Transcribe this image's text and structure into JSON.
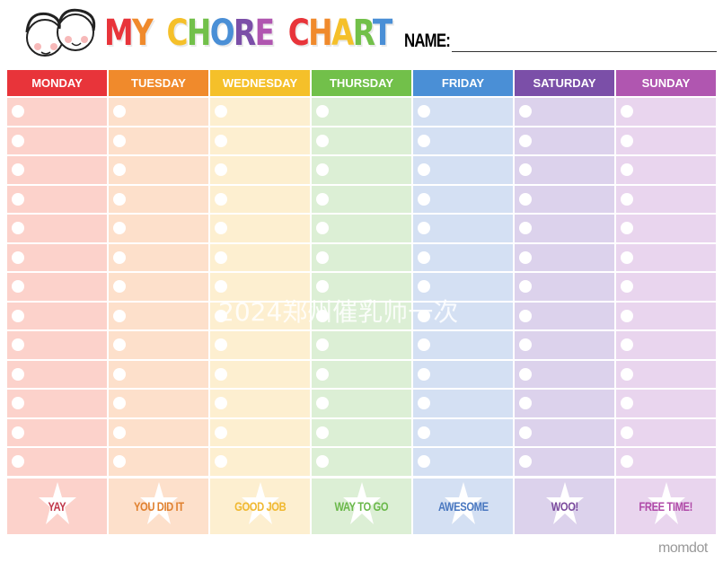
{
  "header": {
    "title": "MY CHORE CHART",
    "title_colors": [
      "#e8343a",
      "#f08a2c",
      "#f5c02a",
      "#72c04a",
      "#4a8fd6",
      "#7b4fa8",
      "#b056b0",
      "#e8343a",
      "#f08a2c",
      "#f5c02a",
      "#72c04a",
      "#4a8fd6"
    ],
    "name_label": "NAME:"
  },
  "days": [
    {
      "label": "MONDAY",
      "color": "#e8343a",
      "pale": "#fcd2cb",
      "reward": "YAY",
      "reward_color": "#c0384a"
    },
    {
      "label": "TUESDAY",
      "color": "#f08a2c",
      "pale": "#fde0cb",
      "reward": "YOU DID IT",
      "reward_color": "#e0802e"
    },
    {
      "label": "WEDNESDAY",
      "color": "#f5c02a",
      "pale": "#fdefd0",
      "reward": "GOOD JOB",
      "reward_color": "#f0b830"
    },
    {
      "label": "THURSDAY",
      "color": "#72c04a",
      "pale": "#dcefd5",
      "reward": "WAY TO GO",
      "reward_color": "#6ab84a"
    },
    {
      "label": "FRIDAY",
      "color": "#4a8fd6",
      "pale": "#d4e0f3",
      "reward": "AWESOME",
      "reward_color": "#4a78c0"
    },
    {
      "label": "SATURDAY",
      "color": "#7b4fa8",
      "pale": "#dcd2ec",
      "reward": "WOO!",
      "reward_color": "#7a4a9c"
    },
    {
      "label": "SUNDAY",
      "color": "#b056b0",
      "pale": "#e9d5ee",
      "reward": "FREE TIME!",
      "reward_color": "#b04aa8"
    }
  ],
  "watermark": "2024郑州催乳师一次",
  "brand": "momdot"
}
